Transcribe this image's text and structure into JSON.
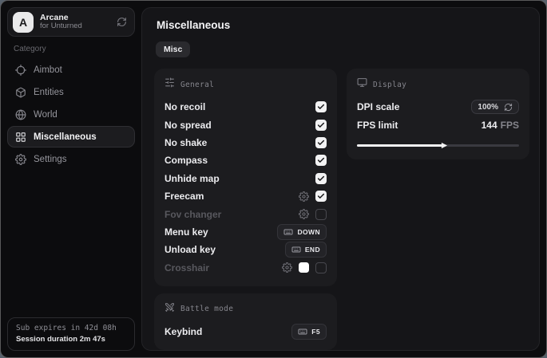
{
  "sidebar": {
    "logo": {
      "avatar": "A",
      "title": "Arcane",
      "subtitle": "for Unturned",
      "action_icon": "refresh-icon"
    },
    "category_label": "Category",
    "items": [
      {
        "label": "Aimbot",
        "icon": "crosshair-icon",
        "selected": false
      },
      {
        "label": "Entities",
        "icon": "cube-icon",
        "selected": false
      },
      {
        "label": "World",
        "icon": "globe-icon",
        "selected": false
      },
      {
        "label": "Miscellaneous",
        "icon": "grid-icon",
        "selected": true
      },
      {
        "label": "Settings",
        "icon": "gear-icon",
        "selected": false
      }
    ],
    "footer": {
      "line1": "Sub expires in 42d 08h",
      "line2": "Session duration 2m 47s"
    }
  },
  "main": {
    "title": "Miscellaneous",
    "tabs": [
      {
        "label": "Misc"
      }
    ],
    "sections": {
      "general": {
        "title": "General",
        "icon": "sliders-icon",
        "rows": [
          {
            "label": "No recoil",
            "dim": false,
            "controls": [
              {
                "type": "checkbox",
                "checked": true
              }
            ]
          },
          {
            "label": "No spread",
            "dim": false,
            "controls": [
              {
                "type": "checkbox",
                "checked": true
              }
            ]
          },
          {
            "label": "No shake",
            "dim": false,
            "controls": [
              {
                "type": "checkbox",
                "checked": true
              }
            ]
          },
          {
            "label": "Compass",
            "dim": false,
            "controls": [
              {
                "type": "checkbox",
                "checked": true
              }
            ]
          },
          {
            "label": "Unhide map",
            "dim": false,
            "controls": [
              {
                "type": "checkbox",
                "checked": true
              }
            ]
          },
          {
            "label": "Freecam",
            "dim": false,
            "controls": [
              {
                "type": "gear"
              },
              {
                "type": "checkbox",
                "checked": true
              }
            ]
          },
          {
            "label": "Fov changer",
            "dim": true,
            "controls": [
              {
                "type": "gear"
              },
              {
                "type": "checkbox",
                "checked": false
              }
            ]
          },
          {
            "label": "Menu key",
            "dim": false,
            "controls": [
              {
                "type": "key",
                "key": "DOWN"
              }
            ]
          },
          {
            "label": "Unload key",
            "dim": false,
            "controls": [
              {
                "type": "key",
                "key": "END"
              }
            ]
          },
          {
            "label": "Crosshair",
            "dim": true,
            "controls": [
              {
                "type": "gear"
              },
              {
                "type": "swatch",
                "color": "#ffffff"
              },
              {
                "type": "checkbox",
                "checked": false
              }
            ]
          }
        ]
      },
      "battle": {
        "title": "Battle mode",
        "icon": "swords-icon",
        "rows": [
          {
            "label": "Keybind",
            "dim": false,
            "controls": [
              {
                "type": "key",
                "key": "F5"
              }
            ]
          }
        ]
      },
      "display": {
        "title": "Display",
        "icon": "monitor-icon",
        "dpi": {
          "label": "DPI scale",
          "value": "100%"
        },
        "fps": {
          "label": "FPS limit",
          "value": "144",
          "unit": "FPS",
          "slider_percent": 53
        }
      }
    }
  },
  "colors": {
    "checkbox_checked": "#f2f2f3",
    "slider_fill": "#f2f2f3",
    "crosshair_swatch": "#ffffff"
  }
}
